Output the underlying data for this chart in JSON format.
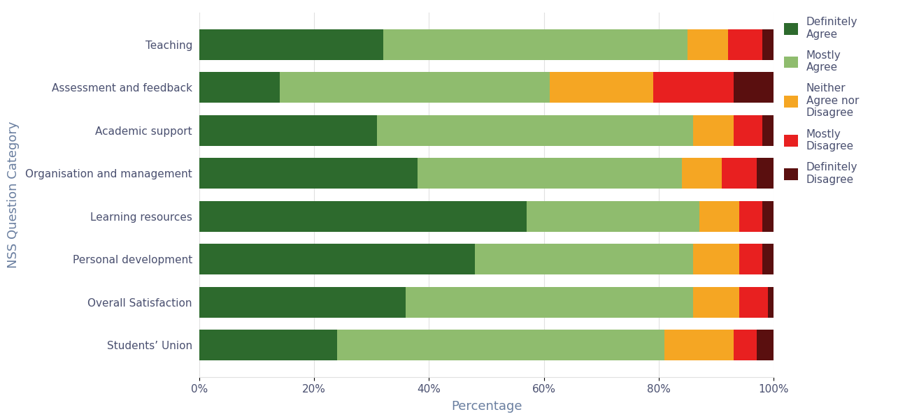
{
  "categories": [
    "Teaching",
    "Assessment and feedback",
    "Academic support",
    "Organisation and management",
    "Learning resources",
    "Personal development",
    "Overall Satisfaction",
    "Students’ Union"
  ],
  "series": {
    "Definitely Agree": [
      32,
      14,
      31,
      38,
      57,
      48,
      36,
      24
    ],
    "Mostly Agree": [
      53,
      47,
      55,
      46,
      30,
      38,
      50,
      57
    ],
    "Neither Agree nor Disagree": [
      7,
      18,
      7,
      7,
      7,
      8,
      8,
      12
    ],
    "Mostly Disagree": [
      6,
      14,
      5,
      6,
      4,
      4,
      5,
      4
    ],
    "Definitely Disagree": [
      2,
      7,
      2,
      3,
      2,
      2,
      1,
      3
    ]
  },
  "colors": {
    "Definitely Agree": "#2d6a2d",
    "Mostly Agree": "#8fbc6e",
    "Neither Agree nor Disagree": "#f5a623",
    "Mostly Disagree": "#e82020",
    "Definitely Disagree": "#5a0f0f"
  },
  "xlabel": "Percentage",
  "ylabel": "NSS Question Category",
  "xlim": [
    0,
    100
  ],
  "legend_labels": [
    "Definitely\nAgree",
    "Mostly\nAgree",
    "Neither\nAgree nor\nDisagree",
    "Mostly\nDisagree",
    "Definitely\nDisagree"
  ],
  "axis_label_color": "#6a7fa0",
  "tick_label_color": "#4a5070",
  "background_color": "#ffffff",
  "bar_height": 0.72,
  "grid_color": "#e0e0e0"
}
